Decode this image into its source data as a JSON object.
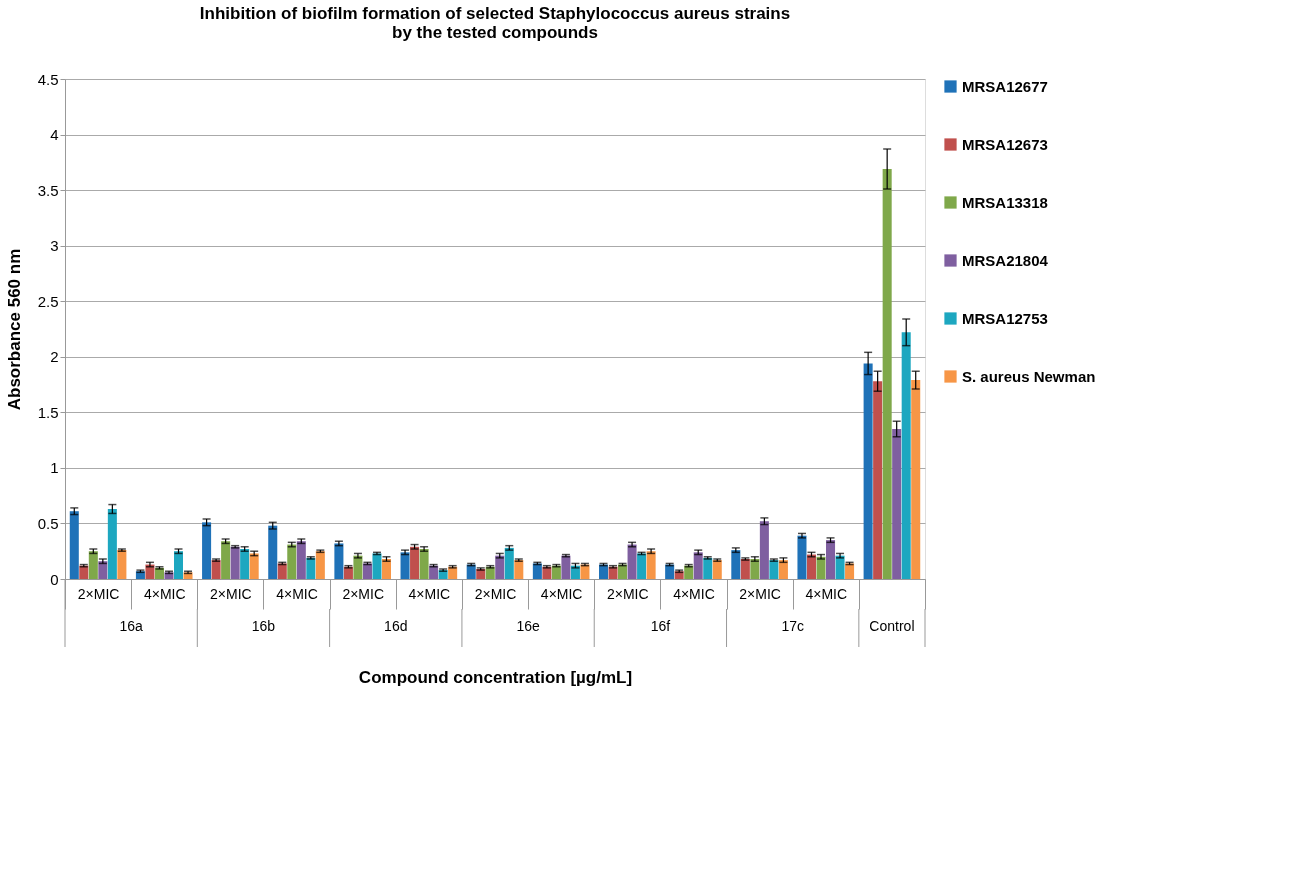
{
  "chart_data": {
    "type": "bar",
    "title": "Inhibition of biofilm formation of selected Staphylococcus aureus strains by the tested compounds",
    "xlabel": "Compound concentration [µg/mL]",
    "ylabel": "Absorbance 560 nm",
    "categories": [
      "2×MIC",
      "4×MIC",
      "2×MIC",
      "4×MIC",
      "2×MIC",
      "4×MIC",
      "2×MIC",
      "4×MIC",
      "2×MIC",
      "4×MIC",
      "2×MIC",
      "4×MIC",
      null
    ],
    "annotations": [
      "16a",
      "16b",
      "16d",
      "16e",
      "16f",
      "17c",
      "Control"
    ],
    "ylim": [
      0,
      4.5
    ],
    "yticks": [
      0,
      0.5,
      1,
      1.5,
      2,
      2.5,
      3,
      3.5,
      4,
      4.5
    ],
    "grid": "y",
    "legend": "right",
    "series": [
      {
        "name": "MRSA12677",
        "color": "#1f72b8",
        "values": [
          0.61,
          0.07,
          0.51,
          0.48,
          0.32,
          0.24,
          0.13,
          0.14,
          0.13,
          0.13,
          0.26,
          0.39,
          1.94
        ],
        "errors": [
          0.03,
          0.01,
          0.03,
          0.03,
          0.02,
          0.02,
          0.01,
          0.01,
          0.01,
          0.01,
          0.02,
          0.02,
          0.1
        ]
      },
      {
        "name": "MRSA12673",
        "color": "#c0504d",
        "values": [
          0.12,
          0.13,
          0.17,
          0.14,
          0.11,
          0.29,
          0.09,
          0.11,
          0.11,
          0.07,
          0.18,
          0.22,
          1.78
        ],
        "errors": [
          0.01,
          0.02,
          0.01,
          0.01,
          0.01,
          0.02,
          0.01,
          0.01,
          0.01,
          0.01,
          0.01,
          0.02,
          0.09
        ]
      },
      {
        "name": "MRSA13318",
        "color": "#7fa84a",
        "values": [
          0.25,
          0.1,
          0.34,
          0.31,
          0.21,
          0.27,
          0.11,
          0.12,
          0.13,
          0.12,
          0.18,
          0.2,
          3.69
        ],
        "errors": [
          0.02,
          0.01,
          0.02,
          0.02,
          0.02,
          0.02,
          0.01,
          0.01,
          0.01,
          0.01,
          0.02,
          0.02,
          0.18
        ]
      },
      {
        "name": "MRSA21804",
        "color": "#7f5fa0",
        "values": [
          0.16,
          0.06,
          0.29,
          0.34,
          0.14,
          0.12,
          0.21,
          0.21,
          0.31,
          0.24,
          0.52,
          0.35,
          1.35
        ],
        "errors": [
          0.02,
          0.01,
          0.01,
          0.02,
          0.01,
          0.01,
          0.02,
          0.01,
          0.02,
          0.02,
          0.03,
          0.02,
          0.07
        ]
      },
      {
        "name": "MRSA12753",
        "color": "#1da7c0",
        "values": [
          0.63,
          0.25,
          0.27,
          0.19,
          0.23,
          0.08,
          0.28,
          0.12,
          0.23,
          0.19,
          0.17,
          0.21,
          2.22
        ],
        "errors": [
          0.04,
          0.02,
          0.02,
          0.01,
          0.01,
          0.01,
          0.02,
          0.02,
          0.01,
          0.01,
          0.01,
          0.02,
          0.12
        ]
      },
      {
        "name": "S. aureus Newman",
        "color": "#f79646",
        "values": [
          0.26,
          0.06,
          0.23,
          0.25,
          0.18,
          0.11,
          0.17,
          0.13,
          0.25,
          0.17,
          0.17,
          0.14,
          1.79
        ],
        "errors": [
          0.01,
          0.01,
          0.02,
          0.01,
          0.02,
          0.01,
          0.01,
          0.01,
          0.02,
          0.01,
          0.02,
          0.01,
          0.08
        ]
      }
    ]
  }
}
